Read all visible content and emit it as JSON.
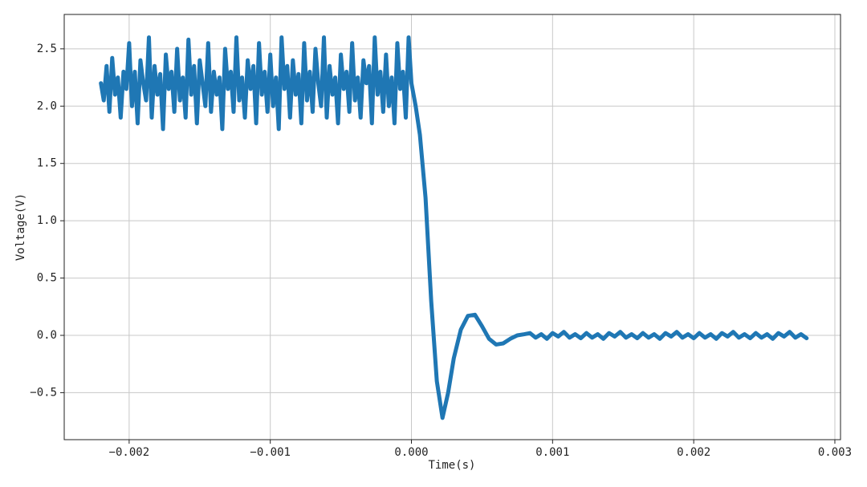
{
  "chart_data": {
    "type": "line",
    "x_label": "Time(s)",
    "y_label": "Voltage(V)",
    "color": "#1f77b4",
    "grid": true,
    "xlim": [
      -0.00246,
      0.00304
    ],
    "ylim": [
      -0.91,
      2.8
    ],
    "xticks": [
      {
        "value": -0.002,
        "label": "−0.002"
      },
      {
        "value": -0.001,
        "label": "−0.001"
      },
      {
        "value": 0,
        "label": "0.000"
      },
      {
        "value": 0.001,
        "label": "0.001"
      },
      {
        "value": 0.002,
        "label": "0.002"
      },
      {
        "value": 0.003,
        "label": "0.003"
      }
    ],
    "yticks": [
      {
        "value": -0.5,
        "label": "−0.5"
      },
      {
        "value": 0,
        "label": "0.0"
      },
      0.5,
      {
        "value": 1,
        "label": "1.0"
      },
      1.5,
      {
        "value": 2,
        "label": "2.0"
      },
      2.5
    ],
    "x": [
      -0.0022,
      -0.00218,
      -0.00216,
      -0.00214,
      -0.00212,
      -0.0021,
      -0.00208,
      -0.00206,
      -0.00204,
      -0.00202,
      -0.002,
      -0.00198,
      -0.00196,
      -0.00194,
      -0.00192,
      -0.0019,
      -0.00188,
      -0.00186,
      -0.00184,
      -0.00182,
      -0.0018,
      -0.00178,
      -0.00176,
      -0.00174,
      -0.00172,
      -0.0017,
      -0.00168,
      -0.00166,
      -0.00164,
      -0.00162,
      -0.0016,
      -0.00158,
      -0.00156,
      -0.00154,
      -0.00152,
      -0.0015,
      -0.00148,
      -0.00146,
      -0.00144,
      -0.00142,
      -0.0014,
      -0.00138,
      -0.00136,
      -0.00134,
      -0.00132,
      -0.0013,
      -0.00128,
      -0.00126,
      -0.00124,
      -0.00122,
      -0.0012,
      -0.00118,
      -0.00116,
      -0.00114,
      -0.00112,
      -0.0011,
      -0.00108,
      -0.00106,
      -0.00104,
      -0.00102,
      -0.001,
      -0.00098,
      -0.00096,
      -0.00094,
      -0.00092,
      -0.0009,
      -0.00088,
      -0.00086,
      -0.00084,
      -0.00082,
      -0.0008,
      -0.00078,
      -0.00076,
      -0.00074,
      -0.00072,
      -0.0007,
      -0.00068,
      -0.00066,
      -0.00064,
      -0.00062,
      -0.0006,
      -0.00058,
      -0.00056,
      -0.00054,
      -0.00052,
      -0.0005,
      -0.00048,
      -0.00046,
      -0.00044,
      -0.00042,
      -0.0004,
      -0.00038,
      -0.00036,
      -0.00034,
      -0.00032,
      -0.0003,
      -0.00028,
      -0.00026,
      -0.00024,
      -0.00022,
      -0.0002,
      -0.00018,
      -0.00016,
      -0.00014,
      -0.00012,
      -0.0001,
      -8e-05,
      -6e-05,
      -4e-05,
      -2e-05,
      0,
      3e-05,
      6e-05,
      0.0001,
      0.00014,
      0.00018,
      0.00022,
      0.00026,
      0.0003,
      0.00035,
      0.0004,
      0.00045,
      0.0005,
      0.00055,
      0.0006,
      0.00065,
      0.0007,
      0.00075,
      0.0008,
      0.00084,
      0.00088,
      0.00092,
      0.00096,
      0.001,
      0.00104,
      0.00108,
      0.00112,
      0.00116,
      0.0012,
      0.00124,
      0.00128,
      0.00132,
      0.00136,
      0.0014,
      0.00144,
      0.00148,
      0.00152,
      0.00156,
      0.0016,
      0.00164,
      0.00168,
      0.00172,
      0.00176,
      0.0018,
      0.00184,
      0.00188,
      0.00192,
      0.00196,
      0.002,
      0.00204,
      0.00208,
      0.00212,
      0.00216,
      0.0022,
      0.00224,
      0.00228,
      0.00232,
      0.00236,
      0.0024,
      0.00244,
      0.00248,
      0.00252,
      0.00256,
      0.0026,
      0.00264,
      0.00268,
      0.00272,
      0.00276,
      0.0028
    ],
    "values": [
      2.2,
      2.05,
      2.35,
      1.95,
      2.42,
      2.1,
      2.25,
      1.9,
      2.3,
      2.15,
      2.55,
      2.0,
      2.3,
      1.85,
      2.4,
      2.2,
      2.05,
      2.6,
      1.9,
      2.35,
      2.1,
      2.28,
      1.8,
      2.45,
      2.15,
      2.3,
      1.95,
      2.5,
      2.05,
      2.25,
      1.9,
      2.58,
      2.1,
      2.35,
      1.85,
      2.4,
      2.2,
      2.0,
      2.55,
      1.95,
      2.3,
      2.1,
      2.25,
      1.8,
      2.5,
      2.15,
      2.3,
      1.95,
      2.6,
      2.05,
      2.25,
      1.9,
      2.4,
      2.15,
      2.35,
      1.85,
      2.55,
      2.1,
      2.3,
      1.95,
      2.45,
      2.0,
      2.25,
      1.8,
      2.6,
      2.15,
      2.35,
      1.9,
      2.4,
      2.1,
      2.28,
      1.85,
      2.55,
      2.05,
      2.3,
      1.95,
      2.5,
      2.2,
      2.0,
      2.6,
      1.9,
      2.35,
      2.1,
      2.25,
      1.85,
      2.45,
      2.15,
      2.3,
      1.95,
      2.55,
      2.05,
      2.25,
      1.9,
      2.4,
      2.2,
      2.35,
      1.85,
      2.6,
      2.1,
      2.3,
      1.95,
      2.45,
      2.0,
      2.25,
      1.85,
      2.55,
      2.15,
      2.3,
      1.9,
      2.6,
      2.2,
      2.0,
      1.75,
      1.2,
      0.3,
      -0.4,
      -0.72,
      -0.5,
      -0.2,
      0.05,
      0.17,
      0.18,
      0.08,
      -0.03,
      -0.08,
      -0.07,
      -0.03,
      0.0,
      0.01,
      0.02,
      -0.02,
      0.01,
      -0.03,
      0.02,
      -0.01,
      0.03,
      -0.02,
      0.01,
      -0.025,
      0.02,
      -0.02,
      0.01,
      -0.03,
      0.02,
      -0.01,
      0.03,
      -0.02,
      0.01,
      -0.025,
      0.02,
      -0.02,
      0.01,
      -0.03,
      0.02,
      -0.01,
      0.03,
      -0.02,
      0.01,
      -0.025,
      0.02,
      -0.02,
      0.01,
      -0.03,
      0.02,
      -0.01,
      0.03,
      -0.02,
      0.01,
      -0.025,
      0.02,
      -0.02,
      0.01,
      -0.03,
      0.02,
      -0.01,
      0.03,
      -0.02,
      0.01,
      -0.025
    ]
  }
}
